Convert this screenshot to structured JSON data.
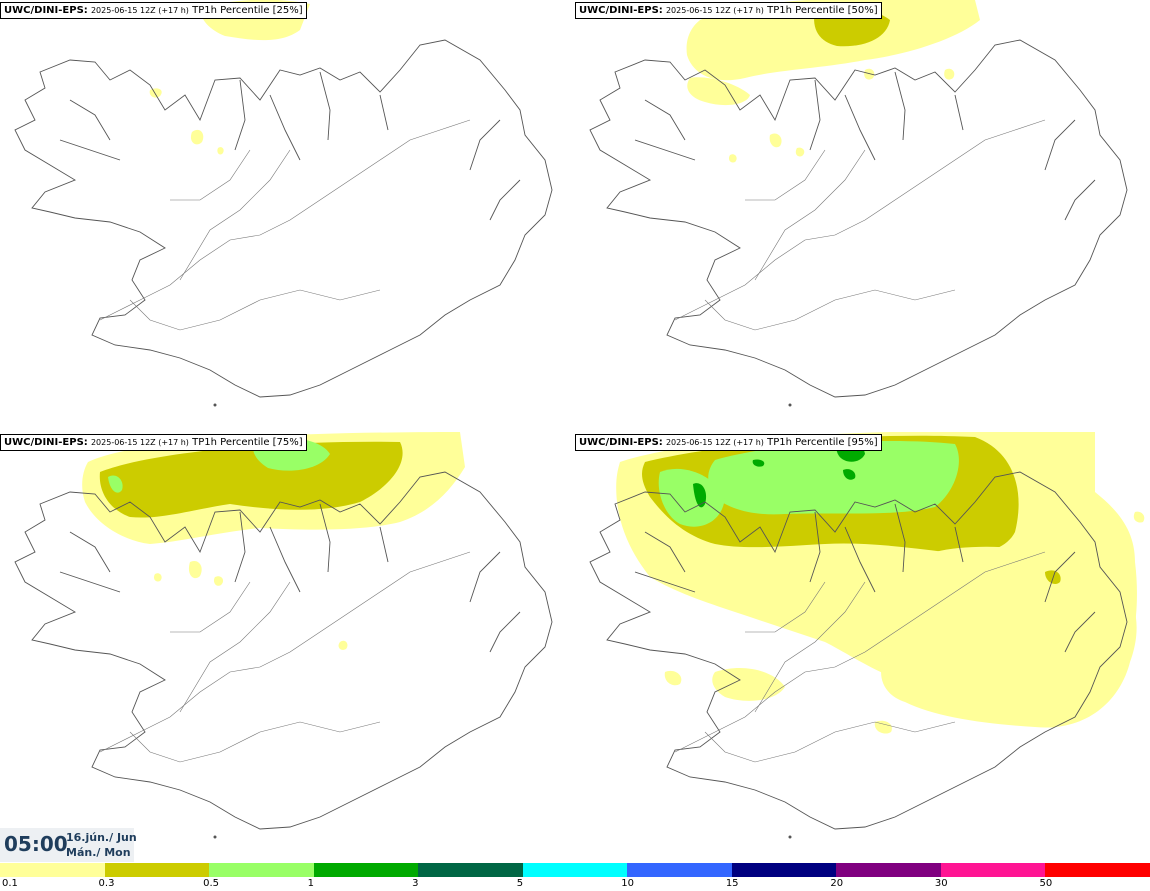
{
  "panels": [
    {
      "model": "UWC/DINI-EPS",
      "run": "2025-06-15 12Z (+17 h)",
      "field": "TP1h Percentile [25%]"
    },
    {
      "model": "UWC/DINI-EPS",
      "run": "2025-06-15 12Z (+17 h)",
      "field": "TP1h Percentile [50%]"
    },
    {
      "model": "UWC/DINI-EPS",
      "run": "2025-06-15 12Z (+17 h)",
      "field": "TP1h Percentile [75%]"
    },
    {
      "model": "UWC/DINI-EPS",
      "run": "2025-06-15 12Z (+17 h)",
      "field": "TP1h Percentile [95%]"
    }
  ],
  "valid_time": {
    "time": "05:00",
    "date_line1": "16.jún./ Jun",
    "date_line2": "Mán./ Mon"
  },
  "colorbar": {
    "colors": [
      "#ffff99",
      "#cccc00",
      "#99ff66",
      "#00aa00",
      "#006644",
      "#00ffff",
      "#3366ff",
      "#000080",
      "#800080",
      "#ff1493",
      "#ff0000"
    ],
    "labels": [
      "0.1",
      "0.3",
      "0.5",
      "1",
      "3",
      "5",
      "10",
      "15",
      "20",
      "30",
      "50"
    ]
  },
  "precip_colors": {
    "light": "#ffff99",
    "moderate": "#cccc00",
    "heavy": "#99ff66",
    "very_heavy": "#00aa00"
  }
}
